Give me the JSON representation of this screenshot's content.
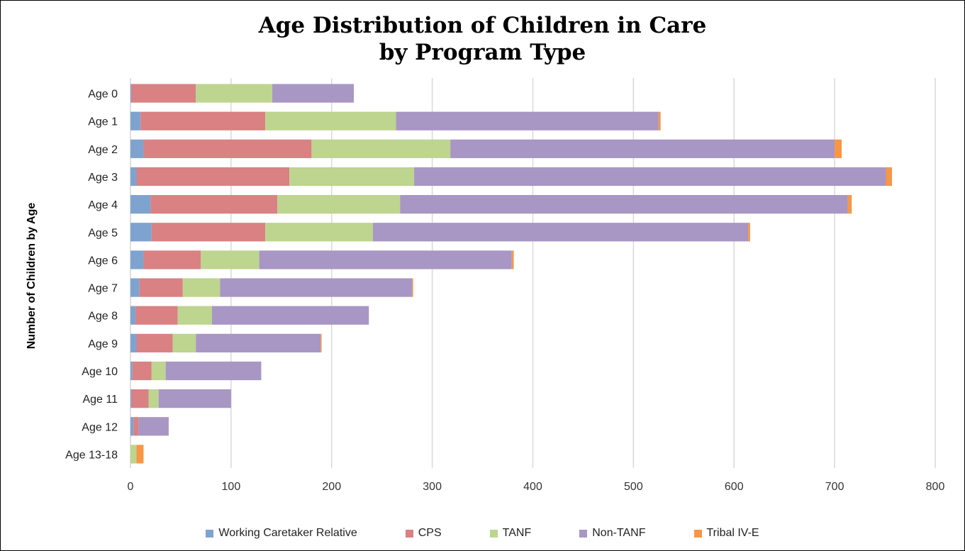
{
  "chart_data": {
    "type": "bar",
    "orientation": "horizontal",
    "stacked": true,
    "title_lines": [
      "Age Distribution of Children in Care",
      "by Program Type"
    ],
    "xlabel": "",
    "ylabel": "Number of Children by Age",
    "xlim": [
      0,
      800
    ],
    "xticks": [
      0,
      100,
      200,
      300,
      400,
      500,
      600,
      700,
      800
    ],
    "grid": "vertical",
    "legend_position": "bottom",
    "categories": [
      "Age 0",
      "Age 1",
      "Age 2",
      "Age 3",
      "Age 4",
      "Age 5",
      "Age 6",
      "Age 7",
      "Age 8",
      "Age 9",
      "Age 10",
      "Age 11",
      "Age 12",
      "Age 13-18"
    ],
    "series": [
      {
        "name": "Working Caretaker Relative",
        "color": "#7fa3cf",
        "values": [
          1,
          10,
          13,
          6,
          20,
          21,
          13,
          9,
          5,
          6,
          2,
          1,
          3,
          0
        ]
      },
      {
        "name": "CPS",
        "color": "#d98183",
        "values": [
          64,
          124,
          167,
          152,
          126,
          113,
          57,
          43,
          42,
          36,
          19,
          17,
          5,
          0
        ]
      },
      {
        "name": "TANF",
        "color": "#bdd58f",
        "values": [
          76,
          130,
          138,
          124,
          122,
          107,
          58,
          37,
          34,
          23,
          14,
          10,
          0,
          6
        ]
      },
      {
        "name": "Non-TANF",
        "color": "#a896c4",
        "values": [
          81,
          261,
          382,
          469,
          445,
          373,
          251,
          191,
          156,
          124,
          95,
          72,
          30,
          0
        ]
      },
      {
        "name": "Tribal IV-E",
        "color": "#f79646",
        "values": [
          0,
          2,
          7,
          6,
          4,
          2,
          2,
          1,
          0,
          1,
          0,
          0,
          0,
          7
        ]
      }
    ]
  }
}
